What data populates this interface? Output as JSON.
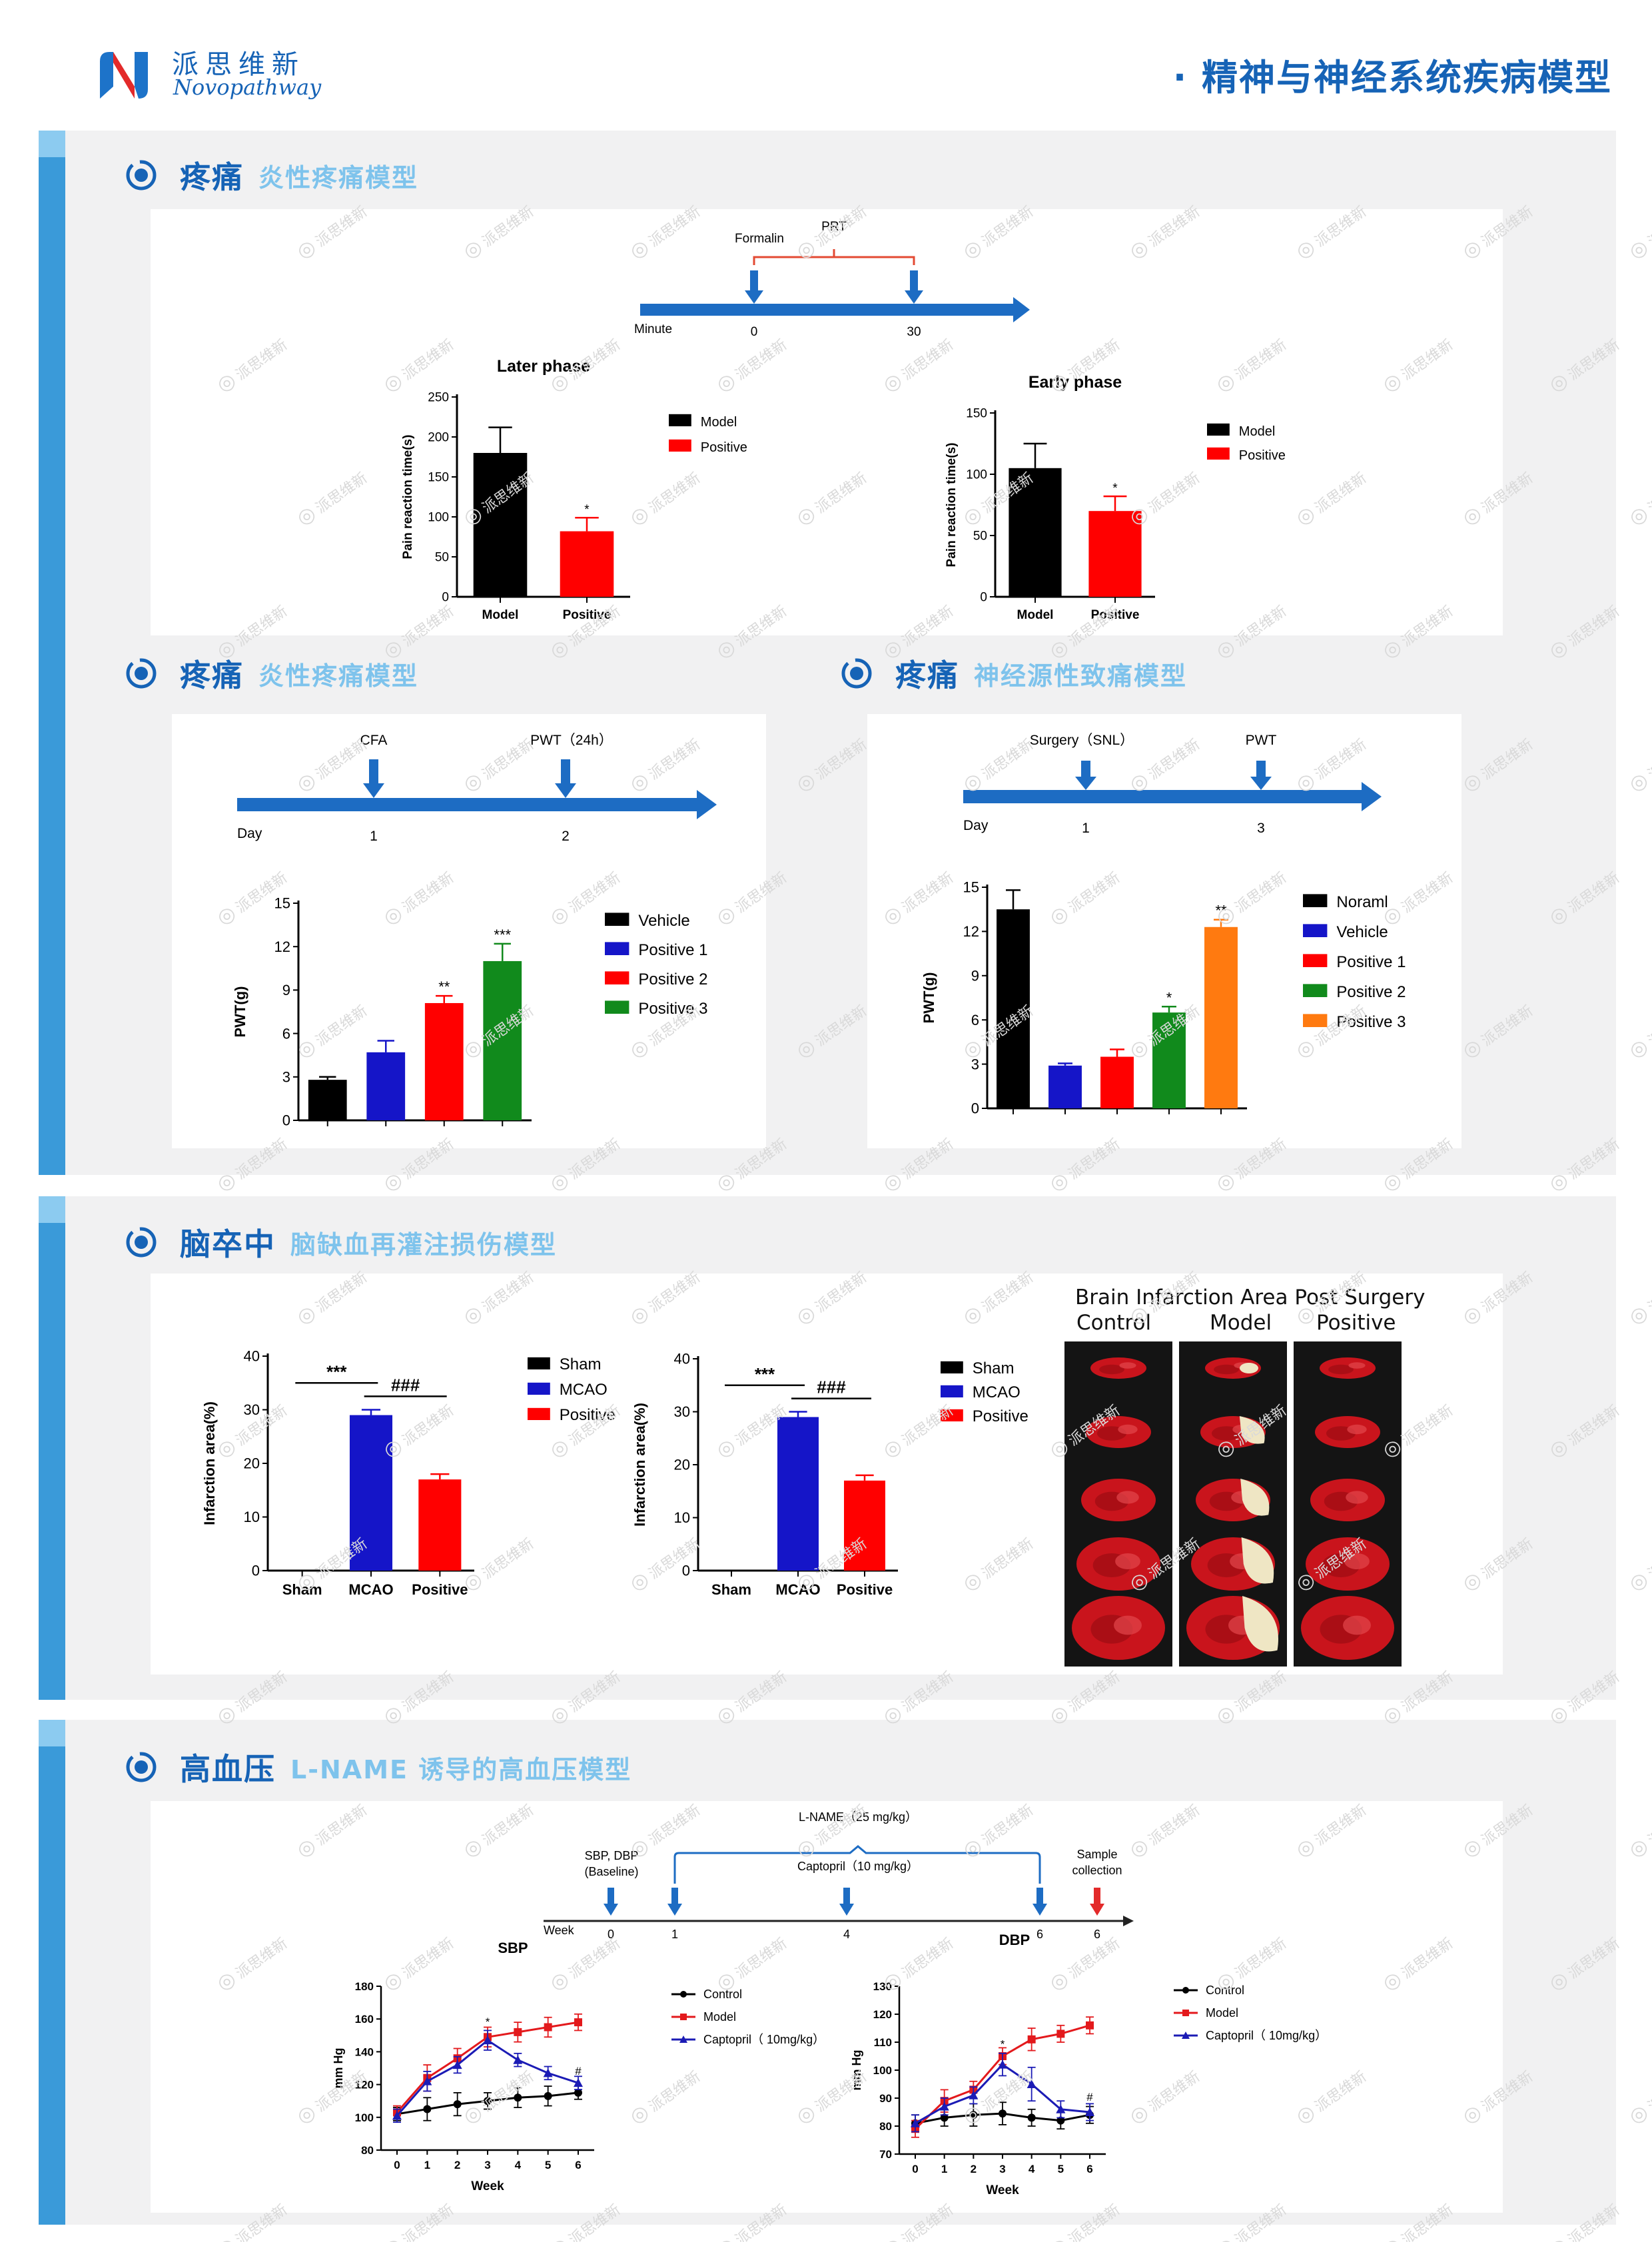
{
  "header": {
    "brand_cn": "派思维新",
    "brand_en": "Novopathway",
    "page_title": "· 精神与神经系统疾病模型"
  },
  "sections": {
    "pain1": {
      "title": "疼痛",
      "subtitle": "炎性疼痛模型"
    },
    "pain2": {
      "title": "疼痛",
      "subtitle": "炎性疼痛模型"
    },
    "pain3": {
      "title": "疼痛",
      "subtitle": "神经源性致痛模型"
    },
    "stroke": {
      "title": "脑卒中",
      "subtitle": "脑缺血再灌注损伤模型"
    },
    "hyper": {
      "title": "高血压",
      "subtitle": "L-NAME 诱导的高血压模型"
    }
  },
  "timelines": {
    "formalin": {
      "axis_label": "Minute",
      "t0": "0",
      "t1": "30",
      "ev0": "Formalin",
      "bracket": "PRT"
    },
    "cfa": {
      "axis_label": "Day",
      "t0": "1",
      "t1": "2",
      "ev0": "CFA",
      "ev1": "PWT（24h）"
    },
    "snl": {
      "axis_label": "Day",
      "t0": "1",
      "t1": "3",
      "ev0": "Surgery（SNL）",
      "ev1": "PWT"
    },
    "lname": {
      "axis_label": "Week",
      "ticks": [
        "0",
        "1",
        "4",
        "6",
        "6"
      ],
      "ev0": "SBP, DBP",
      "ev0b": "(Baseline)",
      "ev_lname": "L-NAME（25 mg/kg）",
      "ev_capto": "Captopril（10 mg/kg）",
      "ev_sample": "Sample",
      "ev_sample2": "collection"
    }
  },
  "chart_data": [
    {
      "id": "later_phase",
      "type": "bar",
      "title": "Later phase",
      "xlabel": "",
      "ylabel": "Pain reaction time(s)",
      "categories": [
        "Model",
        "Positive"
      ],
      "values": [
        180,
        82
      ],
      "errors": [
        32,
        17
      ],
      "sig": [
        "",
        "*"
      ],
      "colors": [
        "#000000",
        "#ff0000"
      ],
      "ylim": [
        0,
        250
      ],
      "yticks": [
        "0",
        "50",
        "100",
        "150",
        "200",
        "250"
      ],
      "legend": [
        "Model",
        "Positive"
      ],
      "legend_position": "right"
    },
    {
      "id": "early_phase",
      "type": "bar",
      "title": "Early phase",
      "xlabel": "",
      "ylabel": "Pain reaction time(s)",
      "categories": [
        "Model",
        "Positive"
      ],
      "values": [
        105,
        70
      ],
      "errors": [
        20,
        12
      ],
      "sig": [
        "",
        "*"
      ],
      "colors": [
        "#000000",
        "#ff0000"
      ],
      "ylim": [
        0,
        150
      ],
      "yticks": [
        "0",
        "50",
        "100",
        "150"
      ],
      "legend": [
        "Model",
        "Positive"
      ],
      "legend_position": "right"
    },
    {
      "id": "cfa_pwt",
      "type": "bar",
      "title": "",
      "xlabel": "",
      "ylabel": "PWT(g)",
      "categories": [
        "",
        "",
        "",
        ""
      ],
      "values": [
        2.8,
        4.7,
        8.1,
        11.0
      ],
      "errors": [
        0.2,
        0.8,
        0.5,
        1.2
      ],
      "sig": [
        "",
        "",
        "**",
        "***"
      ],
      "colors": [
        "#000000",
        "#1515c8",
        "#ff0000",
        "#118a1c"
      ],
      "ylim": [
        0,
        15
      ],
      "yticks": [
        "0",
        "3",
        "6",
        "9",
        "12",
        "15"
      ],
      "legend": [
        "Vehicle",
        "Positive 1",
        "Positive 2",
        "Positive 3"
      ],
      "legend_position": "right"
    },
    {
      "id": "snl_pwt",
      "type": "bar",
      "title": "",
      "xlabel": "",
      "ylabel": "PWT(g)",
      "categories": [
        "",
        "",
        "",
        "",
        ""
      ],
      "values": [
        13.5,
        2.9,
        3.5,
        6.5,
        12.3
      ],
      "errors": [
        1.3,
        0.15,
        0.5,
        0.4,
        0.5
      ],
      "sig": [
        "",
        "",
        "",
        "*",
        "**"
      ],
      "colors": [
        "#000000",
        "#1515c8",
        "#ff0000",
        "#118a1c",
        "#ff7a10"
      ],
      "ylim": [
        0,
        15
      ],
      "yticks": [
        "0",
        "3",
        "6",
        "9",
        "12",
        "15"
      ],
      "legend": [
        "Noraml",
        "Vehicle",
        "Positive 1",
        "Positive 2",
        "Positive 3"
      ],
      "legend_position": "right"
    },
    {
      "id": "infarct_1",
      "type": "bar",
      "title": "",
      "xlabel": "",
      "ylabel": "Infarction area(%)",
      "categories": [
        "Sham",
        "MCAO",
        "Positive"
      ],
      "values": [
        0,
        29,
        17
      ],
      "errors": [
        0,
        1,
        1
      ],
      "sig": [
        "",
        "",
        ""
      ],
      "brackets": [
        {
          "from": 0,
          "to": 1,
          "label": "***"
        },
        {
          "from": 1,
          "to": 2,
          "label": "###"
        }
      ],
      "colors": [
        "#000000",
        "#1515c8",
        "#ff0000"
      ],
      "ylim": [
        0,
        40
      ],
      "yticks": [
        "0",
        "10",
        "20",
        "30",
        "40"
      ],
      "legend": [
        "Sham",
        "MCAO",
        "Positive"
      ],
      "legend_position": "right"
    },
    {
      "id": "infarct_2",
      "type": "bar",
      "title": "",
      "xlabel": "",
      "ylabel": "Infarction area(%)",
      "categories": [
        "Sham",
        "MCAO",
        "Positive"
      ],
      "values": [
        0,
        29,
        17
      ],
      "errors": [
        0,
        1,
        1
      ],
      "sig": [
        "",
        "",
        ""
      ],
      "brackets": [
        {
          "from": 0,
          "to": 1,
          "label": "***"
        },
        {
          "from": 1,
          "to": 2,
          "label": "###"
        }
      ],
      "colors": [
        "#000000",
        "#1515c8",
        "#ff0000"
      ],
      "ylim": [
        0,
        40
      ],
      "yticks": [
        "0",
        "10",
        "20",
        "30",
        "40"
      ],
      "legend": [
        "Sham",
        "MCAO",
        "Positive"
      ],
      "legend_position": "right"
    },
    {
      "id": "sbp",
      "type": "line",
      "title": "SBP",
      "xlabel": "Week",
      "ylabel": "mm Hg",
      "x": [
        0,
        1,
        2,
        3,
        4,
        5,
        6
      ],
      "xticks": [
        "0",
        "1",
        "2",
        "3",
        "4",
        "5",
        "6"
      ],
      "ylim": [
        80,
        180
      ],
      "yticks": [
        "80",
        "100",
        "120",
        "140",
        "160",
        "180"
      ],
      "series": [
        {
          "name": "Control",
          "color": "#000000",
          "marker": "circle",
          "values": [
            102,
            105,
            108,
            110,
            112,
            113,
            115
          ],
          "errors": [
            4,
            7,
            7,
            5,
            6,
            6,
            4
          ]
        },
        {
          "name": "Model",
          "color": "#e3191c",
          "marker": "square",
          "values": [
            103,
            124,
            136,
            149,
            152,
            155,
            158
          ],
          "errors": [
            4,
            8,
            6,
            6,
            6,
            6,
            5
          ]
        },
        {
          "name": "Captopril（ 10mg/kg）",
          "color": "#1b1bb5",
          "marker": "triangle",
          "values": [
            101,
            122,
            132,
            147,
            135,
            127,
            121
          ],
          "errors": [
            4,
            6,
            5,
            6,
            4,
            4,
            4
          ]
        }
      ],
      "annotations": [
        {
          "x": 3,
          "y": 156,
          "text": "*"
        },
        {
          "x": 6,
          "y": 126,
          "text": "#"
        }
      ],
      "legend_position": "right"
    },
    {
      "id": "dbp",
      "type": "line",
      "title": "DBP",
      "xlabel": "Week",
      "ylabel": "mm Hg",
      "x": [
        0,
        1,
        2,
        3,
        4,
        5,
        6
      ],
      "xticks": [
        "0",
        "1",
        "2",
        "3",
        "4",
        "5",
        "6"
      ],
      "ylim": [
        70,
        130
      ],
      "yticks": [
        "70",
        "80",
        "90",
        "100",
        "110",
        "120",
        "130"
      ],
      "series": [
        {
          "name": "Control",
          "color": "#000000",
          "marker": "circle",
          "values": [
            81,
            83,
            84,
            84.5,
            83,
            82,
            84
          ],
          "errors": [
            3,
            3,
            4,
            4,
            3,
            3,
            3
          ]
        },
        {
          "name": "Model",
          "color": "#e3191c",
          "marker": "square",
          "values": [
            79,
            89,
            93,
            105,
            111,
            113,
            116
          ],
          "errors": [
            3,
            4,
            3,
            3,
            4,
            3,
            3
          ]
        },
        {
          "name": "Captopril（ 10mg/kg）",
          "color": "#1b1bb5",
          "marker": "triangle",
          "values": [
            81,
            87,
            91,
            102,
            95,
            86,
            85
          ],
          "errors": [
            3,
            3,
            3,
            4,
            6,
            3,
            3
          ]
        }
      ],
      "annotations": [
        {
          "x": 3,
          "y": 108,
          "text": "*"
        },
        {
          "x": 6,
          "y": 89,
          "text": "#"
        }
      ],
      "legend_position": "right"
    }
  ],
  "brain_panel": {
    "title": "Brain Infarction Area Post Surgery",
    "columns": [
      "Control",
      "Model",
      "Positive"
    ]
  },
  "watermark": {
    "cn": "派思维新",
    "en": "Novopathway"
  }
}
